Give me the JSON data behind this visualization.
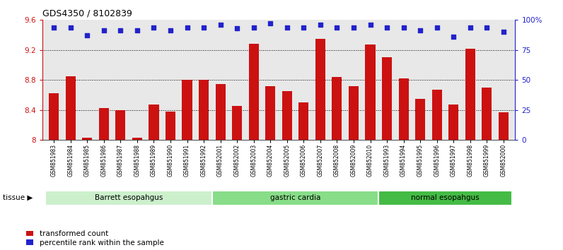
{
  "title": "GDS4350 / 8102839",
  "samples": [
    "GSM851983",
    "GSM851984",
    "GSM851985",
    "GSM851986",
    "GSM851987",
    "GSM851988",
    "GSM851989",
    "GSM851990",
    "GSM851991",
    "GSM851992",
    "GSM852001",
    "GSM852002",
    "GSM852003",
    "GSM852004",
    "GSM852005",
    "GSM852006",
    "GSM852007",
    "GSM852008",
    "GSM852009",
    "GSM852010",
    "GSM851993",
    "GSM851994",
    "GSM851995",
    "GSM851996",
    "GSM851997",
    "GSM851998",
    "GSM851999",
    "GSM852000"
  ],
  "bar_values": [
    8.62,
    8.85,
    8.03,
    8.43,
    8.4,
    8.03,
    8.47,
    8.38,
    8.8,
    8.8,
    8.75,
    8.45,
    9.28,
    8.72,
    8.65,
    8.5,
    9.35,
    8.84,
    8.72,
    9.27,
    9.1,
    8.82,
    8.55,
    8.67,
    8.47,
    9.22,
    8.7,
    8.37
  ],
  "percentile_values": [
    93.5,
    94.0,
    87.5,
    91.5,
    91.5,
    91.5,
    93.5,
    91.5,
    93.5,
    93.8,
    95.8,
    93.2,
    93.5,
    97.0,
    93.5,
    93.5,
    95.8,
    93.5,
    93.5,
    95.8,
    93.5,
    93.5,
    91.5,
    93.5,
    86.0,
    93.5,
    93.5,
    90.0
  ],
  "bar_color": "#cc1111",
  "dot_color": "#2222cc",
  "bar_bottom": 8.0,
  "ylim_left": [
    8.0,
    9.6
  ],
  "ylim_right": [
    0,
    100
  ],
  "yticks_left": [
    8.0,
    8.4,
    8.8,
    9.2,
    9.6
  ],
  "ytick_labels_left": [
    "8",
    "8.4",
    "8.8",
    "9.2",
    "9.6"
  ],
  "yticks_right": [
    0,
    25,
    50,
    75,
    100
  ],
  "ytick_labels_right": [
    "0",
    "25",
    "50",
    "75",
    "100%"
  ],
  "grid_values": [
    8.4,
    8.8,
    9.2
  ],
  "groups": [
    {
      "label": "Barrett esopahgus",
      "start": 0,
      "end": 10,
      "color": "#ccf0cc"
    },
    {
      "label": "gastric cardia",
      "start": 10,
      "end": 20,
      "color": "#88dd88"
    },
    {
      "label": "normal esopahgus",
      "start": 20,
      "end": 28,
      "color": "#44bb44"
    }
  ],
  "tissue_label": "tissue",
  "legend_items": [
    {
      "color": "#cc1111",
      "label": "transformed count"
    },
    {
      "color": "#2222cc",
      "label": "percentile rank within the sample"
    }
  ],
  "plot_bg": "#e8e8e8",
  "fig_bg": "#ffffff",
  "bar_width": 0.6
}
